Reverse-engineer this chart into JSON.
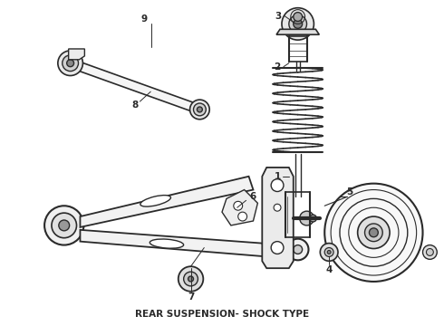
{
  "caption": "REAR SUSPENSION- SHOCK TYPE",
  "bg_color": "#ffffff",
  "line_color": "#2a2a2a",
  "caption_fontsize": 7.5,
  "caption_font_weight": "bold",
  "fig_width": 4.9,
  "fig_height": 3.6,
  "dpi": 100
}
